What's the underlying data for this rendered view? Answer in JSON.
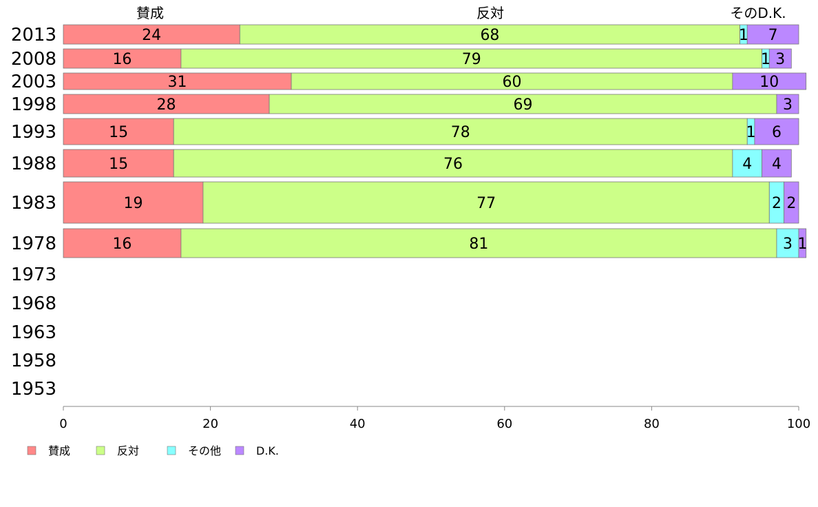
{
  "chart_data": {
    "type": "bar",
    "orientation": "horizontal",
    "stacked": true,
    "categories": [
      "2013",
      "2008",
      "2003",
      "1998",
      "1993",
      "1988",
      "1983",
      "1978",
      "1973",
      "1968",
      "1963",
      "1958",
      "1953"
    ],
    "series": [
      {
        "name": "賛成",
        "color": "#ff8888",
        "values": [
          24,
          16,
          31,
          28,
          15,
          15,
          19,
          16,
          null,
          null,
          null,
          null,
          null
        ]
      },
      {
        "name": "反対",
        "color": "#ccff88",
        "values": [
          68,
          79,
          60,
          69,
          78,
          76,
          77,
          81,
          null,
          null,
          null,
          null,
          null
        ]
      },
      {
        "name": "その他",
        "color": "#88ffff",
        "values": [
          1,
          1,
          0,
          0,
          1,
          4,
          2,
          3,
          null,
          null,
          null,
          null,
          null
        ]
      },
      {
        "name": "D.K.",
        "color": "#bb88ff",
        "values": [
          7,
          3,
          10,
          3,
          6,
          4,
          2,
          1,
          null,
          null,
          null,
          null,
          null
        ]
      }
    ],
    "header_labels": [
      "賛成",
      "反対",
      "そのD.K."
    ],
    "xlim": [
      0,
      100
    ],
    "xticks": [
      "0",
      "20",
      "40",
      "60",
      "80",
      "100"
    ],
    "grid": false,
    "legend_position": "bottom-left"
  }
}
